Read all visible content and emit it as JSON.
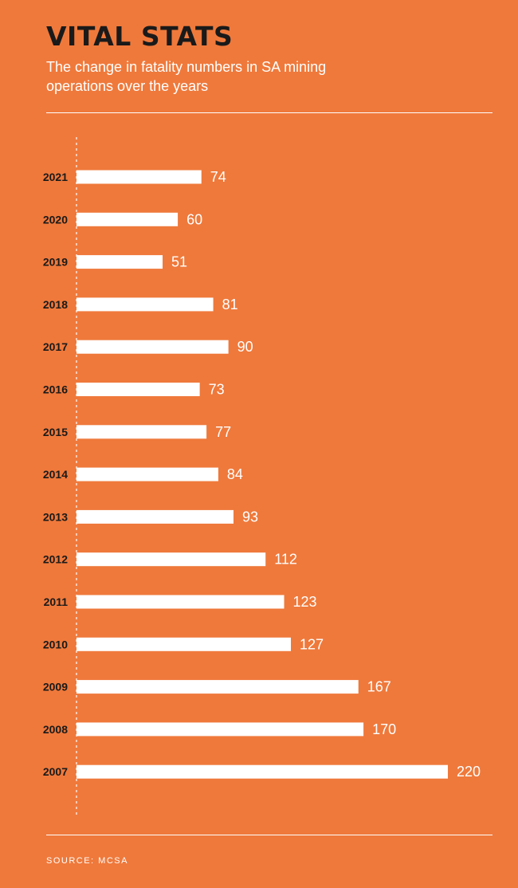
{
  "header": {
    "title": "VITAL STATS",
    "subtitle": "The change in fatality numbers in SA mining operations over the years"
  },
  "footer": {
    "source": "SOURCE: MCSA"
  },
  "colors": {
    "background": "#EF793B",
    "bar": "#FFFFFF",
    "title": "#1A1A1A"
  },
  "chart_data": {
    "type": "bar",
    "orientation": "horizontal",
    "title": "VITAL STATS",
    "subtitle": "The change in fatality numbers in SA mining operations over the years",
    "categories": [
      "2021",
      "2020",
      "2019",
      "2018",
      "2017",
      "2016",
      "2015",
      "2014",
      "2013",
      "2012",
      "2011",
      "2010",
      "2009",
      "2008",
      "2007"
    ],
    "values": [
      74,
      60,
      51,
      81,
      90,
      73,
      77,
      84,
      93,
      112,
      123,
      127,
      167,
      170,
      220
    ],
    "xlabel": "",
    "ylabel": "",
    "xlim": [
      0,
      220
    ],
    "grid": false,
    "legend": "none",
    "data_labels": true
  }
}
